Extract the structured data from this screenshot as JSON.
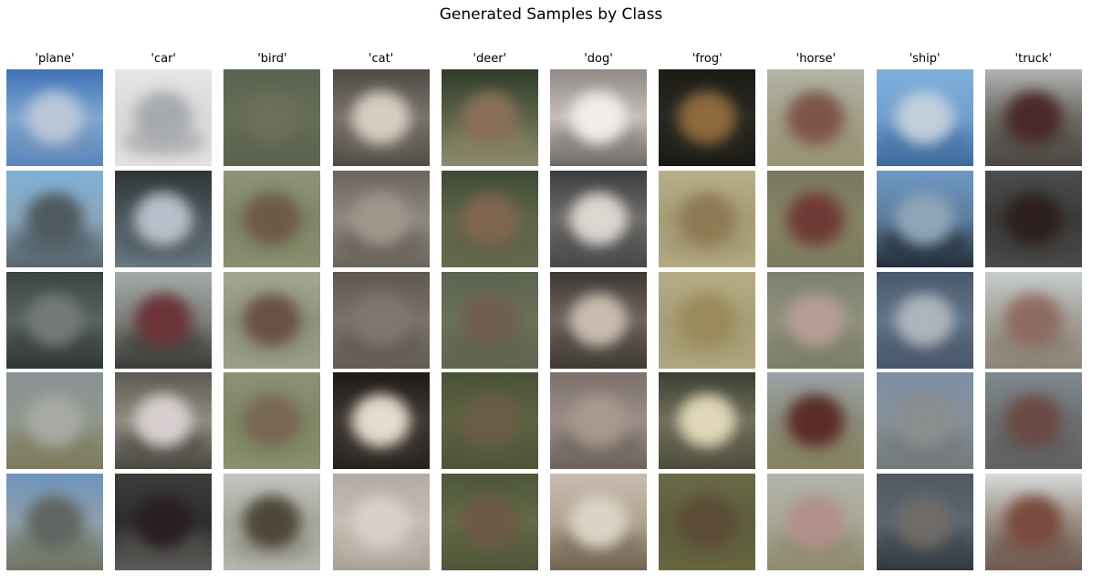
{
  "title": "Generated Samples by Class",
  "classes": [
    {
      "label": "'plane'",
      "samples": [
        {
          "bg": [
            "#3f72b8",
            "#7fa6cf",
            "#5a86bd"
          ],
          "obj": "#b9c6d8",
          "obj2": "#6d8fb8"
        },
        {
          "bg": [
            "#7fb0d8",
            "#8aa7bb",
            "#58666b"
          ],
          "obj": "#4e5a5f",
          "obj2": "#4b5a60"
        },
        {
          "bg": [
            "#3a4441",
            "#59635e",
            "#2f3633"
          ],
          "obj": "#737a76",
          "obj2": "#373e3b"
        },
        {
          "bg": [
            "#8a9296",
            "#8f968c",
            "#7d7a5c"
          ],
          "obj": "#a7a9a3",
          "obj2": "#7f7b5e"
        },
        {
          "bg": [
            "#6f94bd",
            "#8fa0ab",
            "#6f7462"
          ],
          "obj": "#5f6561",
          "obj2": "#737461"
        }
      ]
    },
    {
      "label": "'car'",
      "samples": [
        {
          "bg": [
            "#e6e6e6",
            "#d9d9d9",
            "#e2e2e2"
          ],
          "obj": "#a6a9ae",
          "obj2": "#9d9d9d"
        },
        {
          "bg": [
            "#2d3537",
            "#4e5a60",
            "#6a7880"
          ],
          "obj": "#b9bfca",
          "obj2": "#4f5a60"
        },
        {
          "bg": [
            "#a5aba8",
            "#7c7f7a",
            "#3b3b38"
          ],
          "obj": "#6b3338",
          "obj2": "#3e3e3b"
        },
        {
          "bg": [
            "#5d5a51",
            "#8f8b80",
            "#4a4a42"
          ],
          "obj": "#d7cfcf",
          "obj2": "#4b4943"
        },
        {
          "bg": [
            "#3b3d3b",
            "#2e2f2d",
            "#5a5c58"
          ],
          "obj": "#2a1e22",
          "obj2": "#565753"
        }
      ]
    },
    {
      "label": "'bird'",
      "samples": [
        {
          "bg": [
            "#5a6350",
            "#656d56",
            "#5b6351"
          ],
          "obj": "#6e6f59",
          "obj2": "#5d6451"
        },
        {
          "bg": [
            "#8d9478",
            "#7f8668",
            "#8a8f73"
          ],
          "obj": "#6e5948",
          "obj2": "#828866"
        },
        {
          "bg": [
            "#a3a894",
            "#8e937b",
            "#9ba089"
          ],
          "obj": "#6a5045",
          "obj2": "#8e937c"
        },
        {
          "bg": [
            "#8c9274",
            "#7f8666",
            "#8b9071"
          ],
          "obj": "#786751",
          "obj2": "#7f8464"
        },
        {
          "bg": [
            "#c3c6c0",
            "#a4a79b",
            "#b5b8ae"
          ],
          "obj": "#4f463a",
          "obj2": "#8d8d80"
        }
      ]
    },
    {
      "label": "'cat'",
      "samples": [
        {
          "bg": [
            "#4f4a45",
            "#7a736a",
            "#4f4a44"
          ],
          "obj": "#d5cec2",
          "obj2": "#6b655d"
        },
        {
          "bg": [
            "#6c655e",
            "#8f887e",
            "#6b645c"
          ],
          "obj": "#9f978c",
          "obj2": "#635c55"
        },
        {
          "bg": [
            "#5f5850",
            "#7b7369",
            "#645d55"
          ],
          "obj": "#7f776d",
          "obj2": "#5d564f"
        },
        {
          "bg": [
            "#1f1a17",
            "#3f3833",
            "#26211d"
          ],
          "obj": "#e6dccd",
          "obj2": "#3d3631"
        },
        {
          "bg": [
            "#b3aaa2",
            "#c6bdb3",
            "#a89f95"
          ],
          "obj": "#d8d0c6",
          "obj2": "#c1b9af"
        }
      ]
    },
    {
      "label": "'deer'",
      "samples": [
        {
          "bg": [
            "#2f3b2b",
            "#5b6448",
            "#8f8a6c"
          ],
          "obj": "#8a6f58",
          "obj2": "#8a8567"
        },
        {
          "bg": [
            "#3f4a35",
            "#5e6648",
            "#66684d"
          ],
          "obj": "#806550",
          "obj2": "#5f6246"
        },
        {
          "bg": [
            "#5b6450",
            "#6c7158",
            "#5f6550"
          ],
          "obj": "#6f5e4e",
          "obj2": "#5e6450"
        },
        {
          "bg": [
            "#4a5236",
            "#5e6443",
            "#4d5437"
          ],
          "obj": "#6a5d46",
          "obj2": "#555b3c"
        },
        {
          "bg": [
            "#4d5638",
            "#646a48",
            "#4f5638"
          ],
          "obj": "#6d5a45",
          "obj2": "#565c3d"
        }
      ]
    },
    {
      "label": "'dog'",
      "samples": [
        {
          "bg": [
            "#908a86",
            "#c4bdb8",
            "#6d6864"
          ],
          "obj": "#f0ece8",
          "obj2": "#807a75"
        },
        {
          "bg": [
            "#3b3d3f",
            "#6e6b68",
            "#46484a"
          ],
          "obj": "#dcd6d0",
          "obj2": "#4e4e4f"
        },
        {
          "bg": [
            "#3d3834",
            "#6e655d",
            "#3f3934"
          ],
          "obj": "#c9bcae",
          "obj2": "#4a433d"
        },
        {
          "bg": [
            "#7b706a",
            "#9a8e86",
            "#6d635c"
          ],
          "obj": "#a8988d",
          "obj2": "#6f655e"
        },
        {
          "bg": [
            "#c7bcae",
            "#b0a594",
            "#6f6350"
          ],
          "obj": "#ddd3c5",
          "obj2": "#766a57"
        }
      ]
    },
    {
      "label": "'frog'",
      "samples": [
        {
          "bg": [
            "#1c1c16",
            "#2a2a22",
            "#1a1a14"
          ],
          "obj": "#8e6a3c",
          "obj2": "#262620"
        },
        {
          "bg": [
            "#b8b08a",
            "#a59c74",
            "#b3aa85"
          ],
          "obj": "#8e7a54",
          "obj2": "#9d946c"
        },
        {
          "bg": [
            "#b6ad86",
            "#a69e76",
            "#b1a780"
          ],
          "obj": "#9a8a5a",
          "obj2": "#a0986f"
        },
        {
          "bg": [
            "#3a3e33",
            "#73705b",
            "#4b4c3e"
          ],
          "obj": "#e0d7b8",
          "obj2": "#5c5b49"
        },
        {
          "bg": [
            "#6b6a47",
            "#5e5d3e",
            "#68673f"
          ],
          "obj": "#5c4b36",
          "obj2": "#605f3f"
        }
      ]
    },
    {
      "label": "'horse'",
      "samples": [
        {
          "bg": [
            "#b3b4a7",
            "#a3a089",
            "#9a9476"
          ],
          "obj": "#7e5449",
          "obj2": "#989174"
        },
        {
          "bg": [
            "#77785e",
            "#868466",
            "#7b7a5d"
          ],
          "obj": "#6f3a35",
          "obj2": "#817e60"
        },
        {
          "bg": [
            "#7d816f",
            "#8f917c",
            "#7c7f69"
          ],
          "obj": "#b69e96",
          "obj2": "#7b7d66"
        },
        {
          "bg": [
            "#9ba3a6",
            "#8a8d7c",
            "#86845f"
          ],
          "obj": "#5b2c27",
          "obj2": "#838160"
        },
        {
          "bg": [
            "#b3b4ad",
            "#a8a796",
            "#8e8b6e"
          ],
          "obj": "#b28f8b",
          "obj2": "#8d8a6d"
        }
      ]
    },
    {
      "label": "'ship'",
      "samples": [
        {
          "bg": [
            "#7fb0dc",
            "#6f9fcc",
            "#3d6a9d"
          ],
          "obj": "#c2cfdb",
          "obj2": "#446f9e"
        },
        {
          "bg": [
            "#6f99c4",
            "#5c7c9c",
            "#242f3b"
          ],
          "obj": "#8fa5b8",
          "obj2": "#222c36"
        },
        {
          "bg": [
            "#4a5a6c",
            "#627387",
            "#47566b"
          ],
          "obj": "#aeb4bd",
          "obj2": "#4a596b"
        },
        {
          "bg": [
            "#7e8fa5",
            "#86909a",
            "#737a7c"
          ],
          "obj": "#8b8e8e",
          "obj2": "#717778"
        },
        {
          "bg": [
            "#4f5a63",
            "#5c6670",
            "#303841"
          ],
          "obj": "#6f6b68",
          "obj2": "#3a424a"
        }
      ]
    },
    {
      "label": "'truck'",
      "samples": [
        {
          "bg": [
            "#b0b4b4",
            "#6e6a64",
            "#4a4641"
          ],
          "obj": "#4a2a28",
          "obj2": "#524d47"
        },
        {
          "bg": [
            "#4b4e4e",
            "#3a3a38",
            "#4a4c4b"
          ],
          "obj": "#2d201e",
          "obj2": "#3f3f3d"
        },
        {
          "bg": [
            "#c6ccce",
            "#a39f96",
            "#8c8479"
          ],
          "obj": "#8e6b60",
          "obj2": "#887e72"
        },
        {
          "bg": [
            "#7f8a90",
            "#6c6f70",
            "#626363"
          ],
          "obj": "#6a4a45",
          "obj2": "#5c5d5c"
        },
        {
          "bg": [
            "#d8dcdc",
            "#9a8e84",
            "#6f5a4e"
          ],
          "obj": "#7a4a3e",
          "obj2": "#6b584c"
        }
      ]
    }
  ]
}
